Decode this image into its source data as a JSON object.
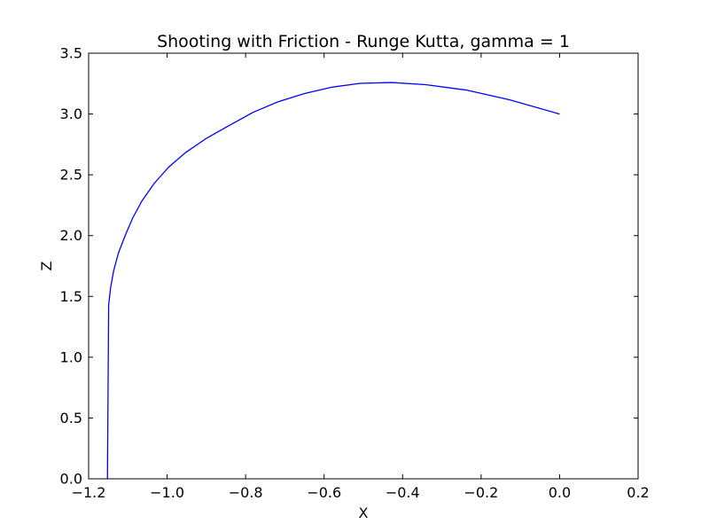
{
  "chart_data": {
    "type": "line",
    "title": "Shooting with Friction - Runge Kutta, gamma = 1",
    "xlabel": "X",
    "ylabel": "Z",
    "xlim": [
      -1.2,
      0.2
    ],
    "ylim": [
      0.0,
      3.5
    ],
    "xticks": [
      -1.2,
      -1.0,
      -0.8,
      -0.6,
      -0.4,
      -0.2,
      0.0,
      0.2
    ],
    "yticks": [
      0.0,
      0.5,
      1.0,
      1.5,
      2.0,
      2.5,
      3.0,
      3.5
    ],
    "xtick_labels": [
      "−1.2",
      "−1.0",
      "−0.8",
      "−0.6",
      "−0.4",
      "−0.2",
      "0.0",
      "0.2"
    ],
    "ytick_labels": [
      "0.0",
      "0.5",
      "1.0",
      "1.5",
      "2.0",
      "2.5",
      "3.0",
      "3.5"
    ],
    "grid": false,
    "series": [
      {
        "color": "#0000ff",
        "x": [
          0.0,
          -0.128,
          -0.238,
          -0.341,
          -0.427,
          -0.508,
          -0.581,
          -0.65,
          -0.718,
          -0.781,
          -0.845,
          -0.9,
          -0.953,
          -0.996,
          -1.033,
          -1.064,
          -1.088,
          -1.107,
          -1.124,
          -1.136,
          -1.144,
          -1.149,
          -1.152
        ],
        "y": [
          3.0,
          3.117,
          3.197,
          3.241,
          3.259,
          3.252,
          3.22,
          3.168,
          3.1,
          3.014,
          2.9,
          2.8,
          2.683,
          2.563,
          2.429,
          2.286,
          2.143,
          2.0,
          1.857,
          1.714,
          1.571,
          1.429,
          0.0
        ]
      }
    ]
  }
}
